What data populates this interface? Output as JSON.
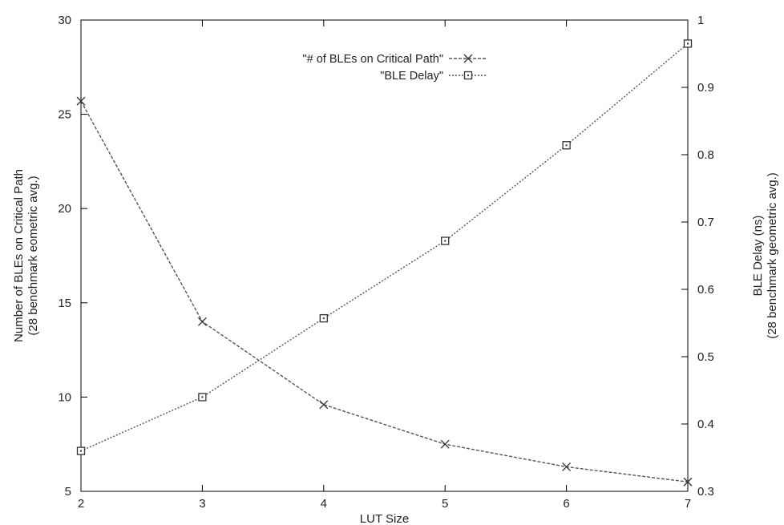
{
  "chart_data": {
    "type": "line",
    "x": [
      2,
      3,
      4,
      5,
      6,
      7
    ],
    "xlabel": "LUT Size",
    "xlim": [
      2,
      7
    ],
    "xticks": [
      2,
      3,
      4,
      5,
      6,
      7
    ],
    "ylabel_left": [
      "Number of BLEs on Critical Path",
      "(28 benchmark eometric avg.)"
    ],
    "ylim_left": [
      5,
      30
    ],
    "yticks_left": [
      5,
      10,
      15,
      20,
      25,
      30
    ],
    "ylabel_right": [
      "BLE Delay (ns)",
      "(28 benchmark geometric avg.)"
    ],
    "ylim_right": [
      0.3,
      1.0
    ],
    "yticks_right": [
      0.3,
      0.4,
      0.5,
      0.6,
      0.7,
      0.8,
      0.9,
      1
    ],
    "series": [
      {
        "name": "\"# of BLEs on Critical Path\"",
        "axis": "left",
        "marker": "x",
        "line": "dashed",
        "values": [
          25.7,
          14.0,
          9.6,
          7.5,
          6.3,
          5.5
        ]
      },
      {
        "name": "\"BLE Delay\"",
        "axis": "right",
        "marker": "square",
        "line": "dotted",
        "values": [
          0.36,
          0.44,
          0.557,
          0.672,
          0.814,
          0.965
        ]
      }
    ],
    "legend_position": "top-center",
    "grid": false,
    "colors": {
      "line": "#555555",
      "axis": "#000000",
      "text": "#222222"
    }
  }
}
